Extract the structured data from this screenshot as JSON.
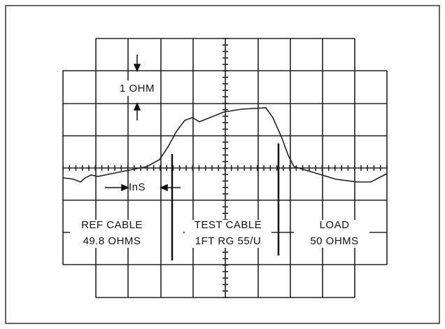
{
  "scale_labels": {
    "vertical": "1 OHM",
    "horizontal": "InS"
  },
  "sections": [
    {
      "name": "REF CABLE",
      "value": "49.8 OHMS"
    },
    {
      "name": "TEST CABLE",
      "value": "1FT RG 55/U"
    },
    {
      "name": "LOAD",
      "value": "50 OHMS"
    }
  ]
}
